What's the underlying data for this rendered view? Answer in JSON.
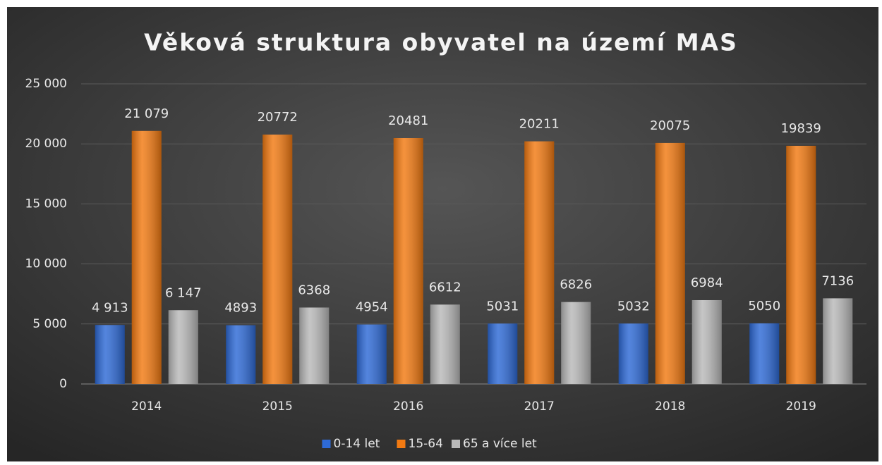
{
  "chart_data": {
    "type": "bar",
    "title": "Věková struktura obyvatel na území MAS",
    "categories": [
      "2014",
      "2015",
      "2016",
      "2017",
      "2018",
      "2019"
    ],
    "series": [
      {
        "name": "0-14 let",
        "color": "#2e6ad6",
        "values": [
          4913,
          4893,
          4954,
          5031,
          5032,
          5050
        ],
        "value_labels": [
          "4 913",
          "4893",
          "4954",
          "5031",
          "5032",
          "5050"
        ]
      },
      {
        "name": "15-64",
        "color": "#f27a12",
        "values": [
          21079,
          20772,
          20481,
          20211,
          20075,
          19839
        ],
        "value_labels": [
          "21 079",
          "20772",
          "20481",
          "20211",
          "20075",
          "19839"
        ]
      },
      {
        "name": "65 a více let",
        "color": "#b9b9b9",
        "values": [
          6147,
          6368,
          6612,
          6826,
          6984,
          7136
        ],
        "value_labels": [
          "6 147",
          "6368",
          "6612",
          "6826",
          "6984",
          "7136"
        ]
      }
    ],
    "ylim": [
      0,
      25000
    ],
    "yticks": [
      0,
      {
        "value": 5000,
        "label": "5 000"
      },
      {
        "value": 10000,
        "label": "10 000"
      },
      {
        "value": 15000,
        "label": "15 000"
      },
      {
        "value": 20000,
        "label": "20 000"
      },
      {
        "value": 25000,
        "label": "25 000"
      }
    ],
    "grid": true,
    "legend": "bottom"
  }
}
